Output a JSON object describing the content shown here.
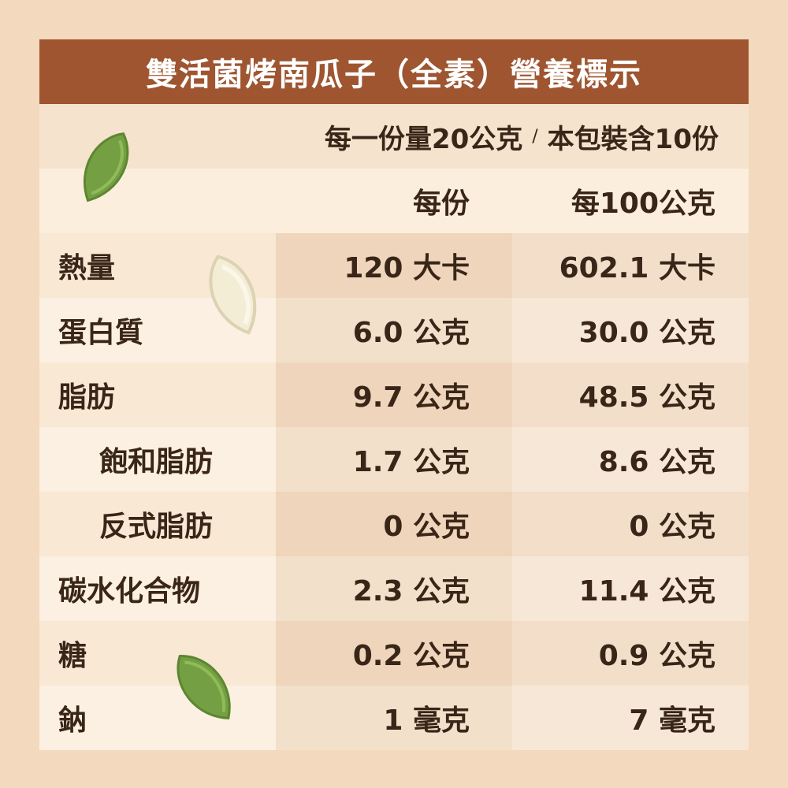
{
  "title": "雙活菌烤南瓜子（全素）營養標示",
  "serving": {
    "per_serving": "每一份量20公克",
    "separator": "/",
    "per_pack": "本包裝含10份"
  },
  "header": {
    "col_per_serving": "每份",
    "col_per_100g": "每100公克"
  },
  "rows": [
    {
      "name": "熱量",
      "per_serving": "120 大卡",
      "per_100g": "602.1 大卡"
    },
    {
      "name": "蛋白質",
      "per_serving": "6.0 公克",
      "per_100g": "30.0 公克"
    },
    {
      "name": "脂肪",
      "per_serving": "9.7 公克",
      "per_100g": "48.5 公克"
    },
    {
      "name": "飽和脂肪",
      "per_serving": "1.7 公克",
      "per_100g": "8.6 公克"
    },
    {
      "name": "反式脂肪",
      "per_serving": "0 公克",
      "per_100g": "0 公克"
    },
    {
      "name": "碳水化合物",
      "per_serving": "2.3 公克",
      "per_100g": "11.4 公克"
    },
    {
      "name": "糖",
      "per_serving": "0.2 公克",
      "per_100g": "0.9 公克"
    },
    {
      "name": "鈉",
      "per_serving": "1 毫克",
      "per_100g": "7 毫克"
    }
  ],
  "colors": {
    "title_bg": "#9e5530",
    "text": "#3a2618",
    "seed_green": "#7ea84a",
    "seed_white": "#f6f0dc"
  },
  "decorations": [
    "pumpkin-seed-green-icon",
    "pumpkin-seed-white-icon",
    "pumpkin-seed-green-icon"
  ]
}
